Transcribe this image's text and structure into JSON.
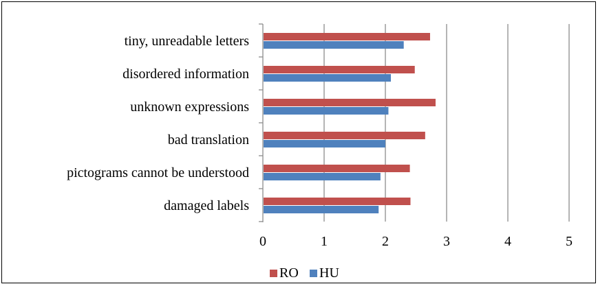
{
  "chart_data": {
    "type": "bar",
    "orientation": "horizontal",
    "title": "",
    "xlabel": "",
    "ylabel": "",
    "categories": [
      "tiny, unreadable letters",
      "disordered information",
      "unknown expressions",
      "bad translation",
      "pictograms cannot be understood",
      "damaged labels"
    ],
    "series": [
      {
        "name": "RO",
        "color": "#c0504d",
        "values": [
          2.73,
          2.48,
          2.82,
          2.65,
          2.4,
          2.41
        ]
      },
      {
        "name": "HU",
        "color": "#4f81bd",
        "values": [
          2.3,
          2.09,
          2.05,
          2.0,
          1.92,
          1.89
        ]
      }
    ],
    "xlim": [
      0,
      5
    ],
    "xticks": [
      "0",
      "1",
      "2",
      "3",
      "4",
      "5"
    ],
    "grid": true,
    "legend_position": "bottom"
  }
}
